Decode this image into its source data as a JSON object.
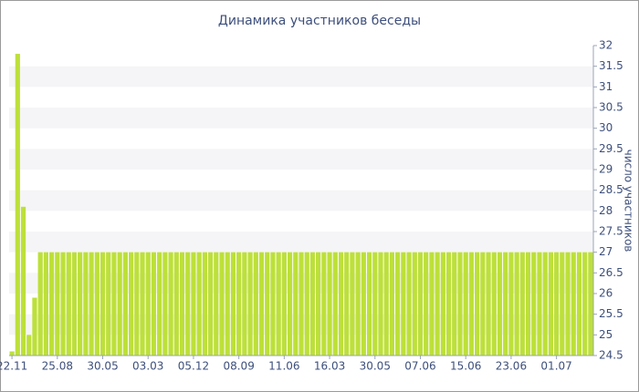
{
  "chart_data": {
    "type": "bar",
    "title": "Динамика участников беседы",
    "y_label": "число участников",
    "categories": [
      "22.11",
      null,
      null,
      null,
      null,
      null,
      null,
      null,
      "25.08",
      null,
      null,
      null,
      null,
      null,
      null,
      null,
      "30.05",
      null,
      null,
      null,
      null,
      null,
      null,
      null,
      "03.03",
      null,
      null,
      null,
      null,
      null,
      null,
      null,
      "05.12",
      null,
      null,
      null,
      null,
      null,
      null,
      null,
      "08.09",
      null,
      null,
      null,
      null,
      null,
      null,
      null,
      "11.06",
      null,
      null,
      null,
      null,
      null,
      null,
      null,
      "16.03",
      null,
      null,
      null,
      null,
      null,
      null,
      null,
      "30.05",
      null,
      null,
      null,
      null,
      null,
      null,
      null,
      "07.06",
      null,
      null,
      null,
      null,
      null,
      null,
      null,
      "15.06",
      null,
      null,
      null,
      null,
      null,
      null,
      null,
      "23.06",
      null,
      null,
      null,
      null,
      null,
      null,
      null,
      "01.07",
      null,
      null,
      null,
      null,
      null,
      null
    ],
    "values": [
      24.6,
      31.8,
      28.1,
      25.0,
      25.9,
      27,
      27,
      27,
      27,
      27,
      27,
      27,
      27,
      27,
      27,
      27,
      27,
      27,
      27,
      27,
      27,
      27,
      27,
      27,
      27,
      27,
      27,
      27,
      27,
      27,
      27,
      27,
      27,
      27,
      27,
      27,
      27,
      27,
      27,
      27,
      27,
      27,
      27,
      27,
      27,
      27,
      27,
      27,
      27,
      27,
      27,
      27,
      27,
      27,
      27,
      27,
      27,
      27,
      27,
      27,
      27,
      27,
      27,
      27,
      27,
      27,
      27,
      27,
      27,
      27,
      27,
      27,
      27,
      27,
      27,
      27,
      27,
      27,
      27,
      27,
      27,
      27,
      27,
      27,
      27,
      27,
      27,
      27,
      27,
      27,
      27,
      27,
      27,
      27,
      27,
      27,
      27,
      27,
      27,
      27,
      27,
      27,
      27
    ],
    "color": "#bde03a",
    "ylim": [
      24.5,
      32
    ],
    "yticks": [
      24.5,
      25,
      25.5,
      26,
      26.5,
      27,
      27.5,
      28,
      28.5,
      29,
      29.5,
      30,
      30.5,
      31,
      31.5,
      32
    ],
    "grid": true
  }
}
